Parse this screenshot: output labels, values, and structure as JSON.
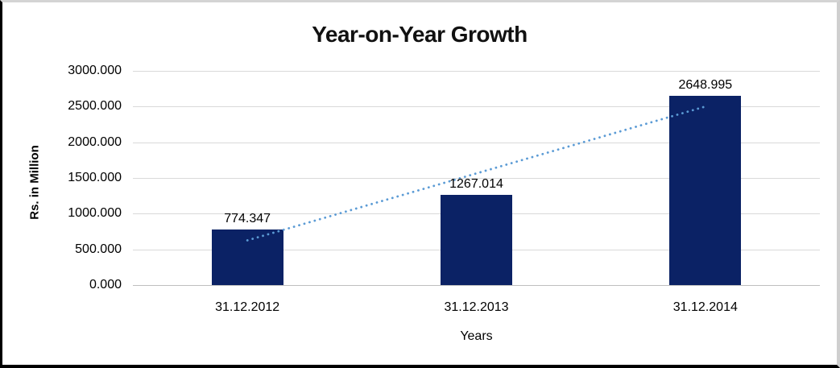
{
  "chart_data": {
    "type": "bar",
    "title": "Year-on-Year Growth",
    "xlabel": "Years",
    "ylabel": "Rs. in Million",
    "categories": [
      "31.12.2012",
      "31.12.2013",
      "31.12.2014"
    ],
    "values": [
      774.347,
      1267.014,
      2648.995
    ],
    "data_labels": [
      "774.347",
      "1267.014",
      "2648.995"
    ],
    "y_ticks": [
      "0.000",
      "500.000",
      "1000.000",
      "1500.000",
      "2000.000",
      "2500.000",
      "3000.000"
    ],
    "y_tick_values": [
      0,
      500,
      1000,
      1500,
      2000,
      2500,
      3000
    ],
    "ylim": [
      0,
      3000
    ],
    "grid": true,
    "legend": "none",
    "bar_color": "#0B2265",
    "trendline": {
      "type": "linear",
      "style": "dotted",
      "color": "#5B9BD5",
      "start_value": 626,
      "end_value": 2501
    }
  }
}
